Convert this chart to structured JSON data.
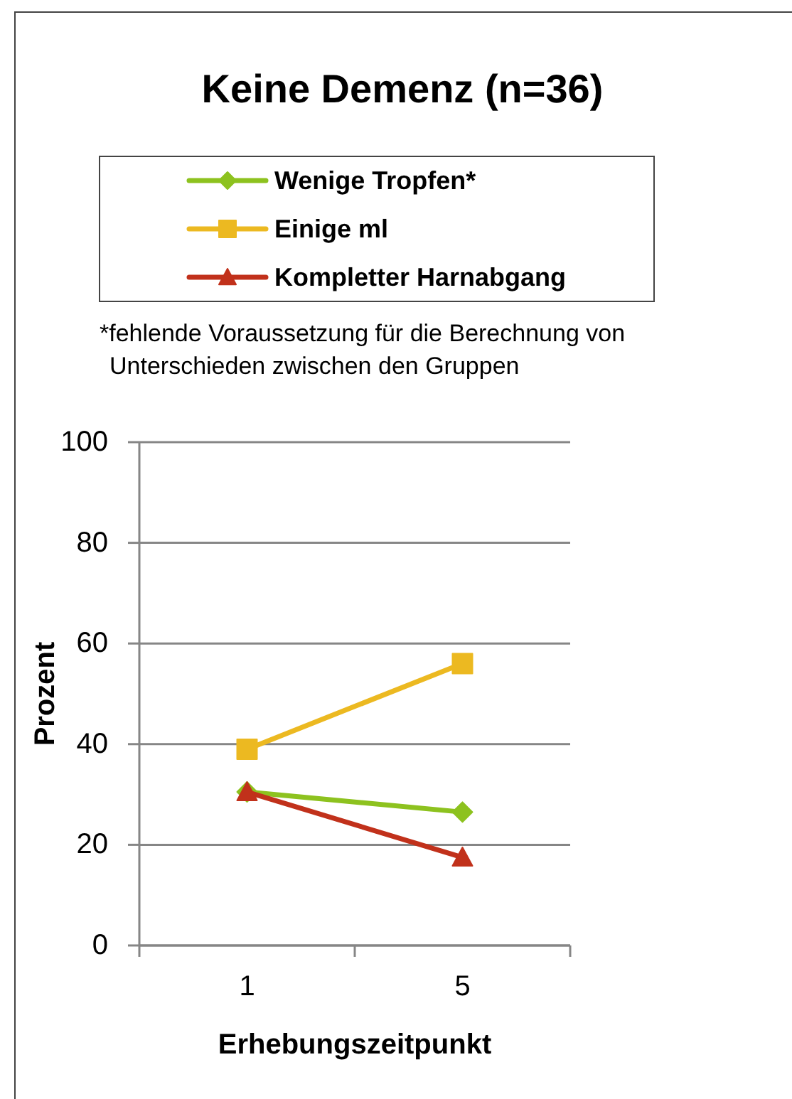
{
  "chart_data": {
    "type": "line",
    "title": "Keine Demenz (n=36)",
    "xlabel": "Erhebungszeitpunkt",
    "ylabel": "Prozent",
    "annotations": [
      "*fehlende Voraussetzung für die Berechnung von Unterschieden zwischen den Gruppen"
    ],
    "categories": [
      "1",
      "5"
    ],
    "series": [
      {
        "name": "Wenige Tropfen*",
        "color": "#8dc21f",
        "marker": "diamond",
        "values": [
          30.5,
          26.5
        ]
      },
      {
        "name": "Einige ml",
        "color": "#ecb921",
        "marker": "square",
        "values": [
          39,
          56
        ]
      },
      {
        "name": "Kompletter Harnabgang",
        "color": "#c1311b",
        "marker": "triangle",
        "values": [
          30.5,
          17.5
        ]
      }
    ],
    "ylim": [
      0,
      100
    ],
    "yticks": [
      0,
      20,
      40,
      60,
      80,
      100
    ],
    "grid": "y",
    "legend": "top"
  }
}
